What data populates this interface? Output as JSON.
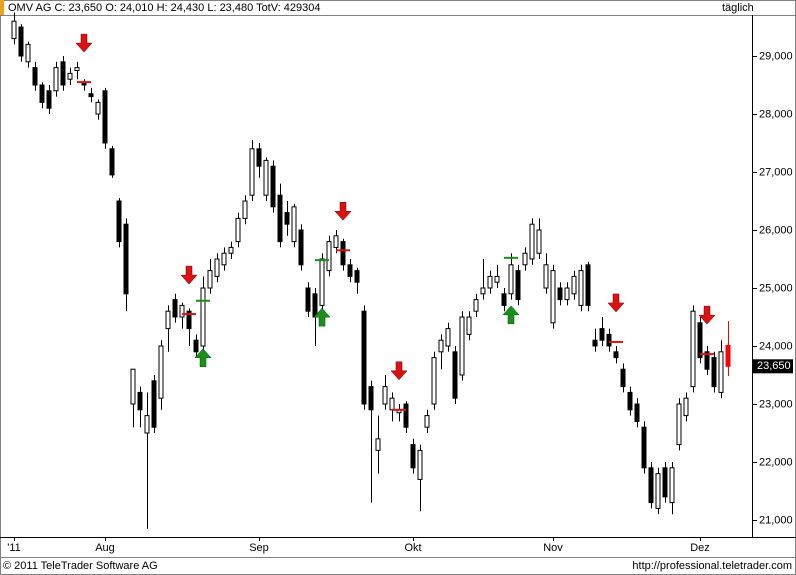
{
  "chart_data": {
    "type": "candlestick",
    "title": "OMV AG C: 23,650 O: 24,010 H: 24,430 L: 23,480 TotV: 429304",
    "period": "täglich",
    "footer_left": "© 2011 TeleTrader Software AG",
    "footer_right": "http://professional.teletrader.com",
    "last_price": {
      "value": 23650,
      "label": "23,650"
    },
    "up_color": "#ffffff",
    "down_color": "#000000",
    "last_color": "#ff0000",
    "buy_color": "#1a8f1a",
    "sell_color": "#dd1111",
    "ylim": [
      20707,
      29707
    ],
    "yticks": [
      {
        "value": 21000,
        "label": "21,000"
      },
      {
        "value": 22000,
        "label": "22,000"
      },
      {
        "value": 23000,
        "label": "23,000"
      },
      {
        "value": 24000,
        "label": "24,000"
      },
      {
        "value": 25000,
        "label": "25,000"
      },
      {
        "value": 26000,
        "label": "26,000"
      },
      {
        "value": 27000,
        "label": "27,000"
      },
      {
        "value": 28000,
        "label": "28,000"
      },
      {
        "value": 29000,
        "label": "29,000"
      }
    ],
    "categories": [
      "'11",
      null,
      null,
      null,
      null,
      null,
      null,
      null,
      null,
      null,
      null,
      null,
      null,
      "Aug",
      null,
      null,
      null,
      null,
      null,
      null,
      null,
      null,
      null,
      null,
      null,
      null,
      null,
      null,
      null,
      null,
      null,
      null,
      null,
      null,
      null,
      "Sep",
      null,
      null,
      null,
      null,
      null,
      null,
      null,
      null,
      null,
      null,
      null,
      null,
      null,
      null,
      null,
      null,
      null,
      null,
      null,
      null,
      null,
      "Okt",
      null,
      null,
      null,
      null,
      null,
      null,
      null,
      null,
      null,
      null,
      null,
      null,
      null,
      null,
      null,
      null,
      null,
      null,
      null,
      "Nov",
      null,
      null,
      null,
      null,
      null,
      null,
      null,
      null,
      null,
      null,
      null,
      null,
      null,
      null,
      null,
      null,
      null,
      null,
      null,
      null,
      "Dez",
      null,
      null,
      null,
      null
    ],
    "open": [
      29300,
      29500,
      28900,
      28800,
      28500,
      28400,
      28400,
      28900,
      28600,
      28750,
      28550,
      28350,
      28000,
      28400,
      27400,
      26500,
      26100,
      23000,
      23200,
      22500,
      23400,
      23100,
      24300,
      24800,
      24500,
      24600,
      24100,
      24000,
      25000,
      25200,
      25400,
      25600,
      25800,
      26200,
      26600,
      27400,
      26600,
      27100,
      26600,
      26300,
      25800,
      26000,
      25000,
      24900,
      24700,
      25300,
      25700,
      25800,
      25400,
      25300,
      24600,
      23300,
      22200,
      23000,
      22900,
      22850,
      23000,
      22300,
      21700,
      22600,
      23000,
      23900,
      24000,
      23900,
      23500,
      24200,
      24600,
      24900,
      25000,
      25100,
      24900,
      24900,
      25300,
      25400,
      25500,
      25600,
      25000,
      24400,
      25000,
      24800,
      24900,
      24700,
      25400,
      24100,
      24300,
      24200,
      23900,
      23600,
      23200,
      23000,
      22600,
      21900,
      21200,
      21900,
      21300,
      22300,
      22800,
      23300,
      24400,
      23900,
      23800,
      23200,
      24010
    ],
    "high": [
      29750,
      29550,
      29250,
      28900,
      28550,
      28500,
      28900,
      29000,
      28800,
      28900,
      28600,
      28450,
      28250,
      28450,
      27450,
      26550,
      26200,
      23600,
      23300,
      23200,
      23500,
      24100,
      24700,
      24900,
      24750,
      24650,
      24200,
      25200,
      25500,
      25600,
      25700,
      25800,
      26300,
      26600,
      27550,
      27500,
      27250,
      27200,
      26800,
      26500,
      26450,
      26100,
      25100,
      25000,
      25600,
      25900,
      26000,
      25850,
      25500,
      25350,
      24700,
      23400,
      22800,
      23500,
      23200,
      23000,
      23050,
      22400,
      22300,
      22900,
      23900,
      24200,
      24400,
      24000,
      24600,
      24600,
      24900,
      25500,
      25300,
      25400,
      25000,
      25600,
      25400,
      25700,
      26200,
      26200,
      25600,
      25400,
      25100,
      25100,
      25300,
      25400,
      25450,
      24300,
      24500,
      24300,
      24000,
      23700,
      23300,
      23100,
      22700,
      22000,
      21900,
      22000,
      22000,
      23100,
      23200,
      24700,
      24500,
      24000,
      23900,
      24100,
      24430
    ],
    "low": [
      29200,
      28900,
      28800,
      28400,
      28100,
      28000,
      28300,
      28400,
      28500,
      28600,
      28400,
      28200,
      27900,
      27400,
      26900,
      25700,
      24600,
      22600,
      22600,
      20850,
      22500,
      22900,
      23900,
      24400,
      24300,
      24000,
      23800,
      23900,
      24900,
      25100,
      25300,
      25500,
      25700,
      26100,
      26500,
      26900,
      26500,
      26300,
      25700,
      25900,
      25700,
      25300,
      24500,
      24000,
      24500,
      25200,
      25600,
      25300,
      25100,
      24900,
      22900,
      21300,
      21800,
      22900,
      22700,
      22700,
      22500,
      21800,
      21150,
      22500,
      22900,
      23600,
      23900,
      23000,
      23400,
      24100,
      24500,
      24800,
      24900,
      25000,
      24600,
      24800,
      24700,
      25300,
      25400,
      25500,
      24900,
      24300,
      24700,
      24700,
      24800,
      24600,
      24600,
      23900,
      24000,
      23900,
      23700,
      23200,
      22800,
      22600,
      21800,
      21200,
      21100,
      21300,
      21100,
      22200,
      22700,
      23200,
      23700,
      23500,
      23200,
      23100,
      23480
    ],
    "close": [
      29600,
      29000,
      29200,
      28500,
      28200,
      28100,
      28800,
      28500,
      28700,
      28800,
      28500,
      28300,
      28200,
      27500,
      26950,
      25800,
      24900,
      23600,
      22900,
      22800,
      22600,
      24000,
      24600,
      24500,
      24700,
      24300,
      23900,
      25000,
      25300,
      25500,
      25600,
      25700,
      26200,
      26500,
      27400,
      27100,
      27200,
      26400,
      25800,
      26100,
      26400,
      25400,
      24600,
      24500,
      25500,
      25800,
      25900,
      25400,
      25200,
      25100,
      23000,
      22900,
      22400,
      23300,
      23100,
      22900,
      22600,
      21900,
      22200,
      22800,
      23800,
      24100,
      24300,
      23100,
      24500,
      24500,
      24800,
      25000,
      25200,
      25200,
      24700,
      25400,
      24800,
      25600,
      26100,
      26000,
      25400,
      25300,
      24800,
      25000,
      25200,
      25300,
      24700,
      24000,
      24100,
      24000,
      23800,
      23300,
      22900,
      22700,
      21900,
      21300,
      21800,
      21400,
      21900,
      23000,
      23100,
      24600,
      23800,
      23600,
      23300,
      23900,
      23650
    ],
    "signals": [
      {
        "direction": "sell",
        "candle": 10,
        "price": 28550
      },
      {
        "direction": "sell",
        "candle": 25,
        "price": 24550
      },
      {
        "direction": "buy",
        "candle": 27,
        "price": 24780
      },
      {
        "direction": "buy",
        "candle": 44,
        "price": 25480
      },
      {
        "direction": "sell",
        "candle": 47,
        "price": 25650
      },
      {
        "direction": "sell",
        "candle": 55,
        "price": 22900
      },
      {
        "direction": "buy",
        "candle": 71,
        "price": 25520
      },
      {
        "direction": "sell",
        "candle": 86,
        "price": 24070
      },
      {
        "direction": "sell",
        "candle": 99,
        "price": 23860
      }
    ]
  }
}
